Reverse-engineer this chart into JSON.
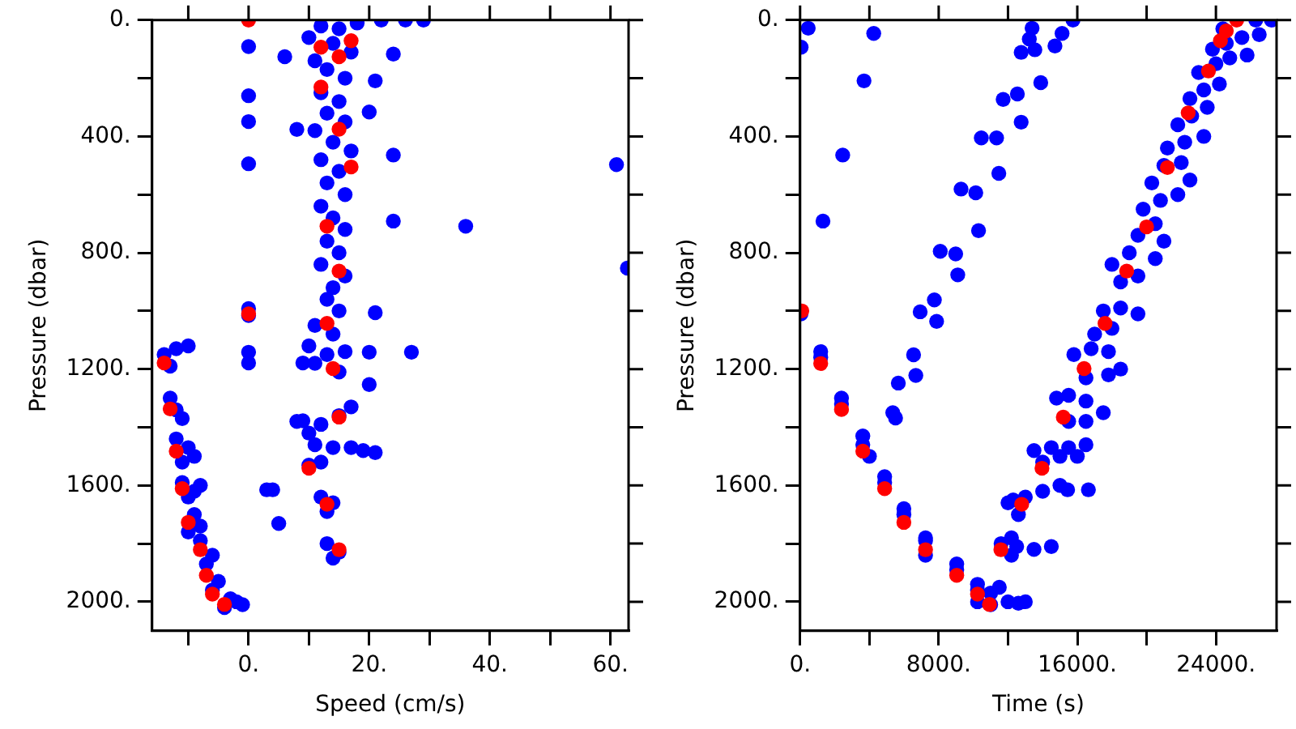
{
  "chart_data": [
    {
      "type": "scatter",
      "xlabel": "Speed (cm/s)",
      "ylabel": "Pressure (dbar)",
      "xlim": [
        -16,
        63
      ],
      "ylim": [
        2100,
        0
      ],
      "grid": false,
      "marker": "circle",
      "xticks": [
        {
          "value": -10,
          "label": null
        },
        {
          "value": 0,
          "label": "0."
        },
        {
          "value": 10,
          "label": null
        },
        {
          "value": 20,
          "label": "20."
        },
        {
          "value": 30,
          "label": null
        },
        {
          "value": 40,
          "label": "40."
        },
        {
          "value": 50,
          "label": null
        },
        {
          "value": 60,
          "label": "60."
        }
      ],
      "yticks": [
        {
          "value": 0,
          "label": "0."
        },
        {
          "value": 200,
          "label": null
        },
        {
          "value": 400,
          "label": "400."
        },
        {
          "value": 600,
          "label": null
        },
        {
          "value": 800,
          "label": "800."
        },
        {
          "value": 1000,
          "label": null
        },
        {
          "value": 1200,
          "label": "1200."
        },
        {
          "value": 1400,
          "label": null
        },
        {
          "value": 1600,
          "label": "1600."
        },
        {
          "value": 1800,
          "label": null
        },
        {
          "value": 2000,
          "label": "2000."
        }
      ],
      "series": [
        {
          "color": "#0000ff",
          "x": [
            0,
            0,
            0,
            0,
            0,
            0,
            0,
            0,
            3,
            4,
            5,
            12,
            15,
            18,
            10,
            14,
            17,
            11,
            13,
            16,
            12,
            15,
            13,
            16,
            11,
            14,
            17,
            12,
            15,
            13,
            16,
            12,
            14,
            16,
            13,
            15,
            12,
            16,
            14,
            13,
            15,
            11,
            14,
            22,
            26,
            29,
            24,
            21,
            20,
            24,
            61,
            36,
            24,
            62.8,
            21,
            8,
            6,
            20,
            27,
            20,
            21,
            9,
            9,
            10,
            13,
            16,
            11,
            15,
            17,
            15,
            12,
            10,
            8,
            11,
            14,
            17,
            19,
            10,
            12,
            12,
            14,
            13,
            13,
            15,
            14,
            -14,
            -12,
            -10,
            -13,
            -13,
            -12,
            -11,
            -12,
            -10,
            -11,
            -9,
            -11,
            -9,
            -10,
            -8,
            -9,
            -10,
            -8,
            -8,
            -6,
            -7,
            -5,
            -6,
            -3,
            -2,
            -4,
            -1
          ],
          "values": [
            91,
            260,
            349,
            494,
            992,
            1016,
            1142,
            1179,
            1615,
            1615,
            1731,
            20,
            30,
            10,
            60,
            80,
            110,
            140,
            170,
            200,
            250,
            280,
            320,
            350,
            380,
            420,
            450,
            480,
            520,
            560,
            600,
            640,
            680,
            720,
            760,
            800,
            840,
            880,
            920,
            960,
            1000,
            1050,
            1080,
            0,
            0,
            0,
            117,
            209,
            316,
            464,
            497,
            709,
            691,
            853,
            1006,
            376,
            126,
            1142,
            1142,
            1253,
            1487,
            1179,
            1378,
            1120,
            1150,
            1140,
            1180,
            1210,
            1330,
            1360,
            1390,
            1420,
            1380,
            1460,
            1470,
            1470,
            1480,
            1530,
            1520,
            1640,
            1660,
            1690,
            1800,
            1830,
            1850,
            1150,
            1130,
            1120,
            1190,
            1300,
            1340,
            1370,
            1440,
            1470,
            1520,
            1500,
            1590,
            1620,
            1640,
            1600,
            1700,
            1760,
            1740,
            1790,
            1840,
            1870,
            1930,
            1960,
            1990,
            2000,
            2020,
            2010
          ]
        },
        {
          "color": "#ff0000",
          "x": [
            0,
            12,
            17,
            15,
            12,
            15,
            17,
            13,
            15,
            0,
            13,
            -14,
            14,
            -13,
            15,
            -12,
            10,
            -11,
            13,
            -10,
            -8,
            15,
            -7,
            -6,
            -4
          ],
          "values": [
            0,
            93,
            71,
            126,
            230,
            375,
            505,
            709,
            863,
            1010,
            1043,
            1179,
            1198,
            1337,
            1365,
            1482,
            1541,
            1611,
            1665,
            1727,
            1821,
            1821,
            1909,
            1974,
            2009
          ]
        }
      ]
    },
    {
      "type": "scatter",
      "xlabel": "Time (s)",
      "ylabel": "Pressure (dbar)",
      "xlim": [
        0,
        27500
      ],
      "ylim": [
        2100,
        0
      ],
      "grid": false,
      "marker": "circle",
      "xticks": [
        {
          "value": 0,
          "label": "0."
        },
        {
          "value": 4000,
          "label": null
        },
        {
          "value": 8000,
          "label": "8000."
        },
        {
          "value": 12000,
          "label": null
        },
        {
          "value": 16000,
          "label": "16000."
        },
        {
          "value": 20000,
          "label": null
        },
        {
          "value": 24000,
          "label": "24000."
        }
      ],
      "yticks": [
        {
          "value": 0,
          "label": "0."
        },
        {
          "value": 200,
          "label": null
        },
        {
          "value": 400,
          "label": "400."
        },
        {
          "value": 600,
          "label": null
        },
        {
          "value": 800,
          "label": "800."
        },
        {
          "value": 1000,
          "label": null
        },
        {
          "value": 1200,
          "label": "1200."
        },
        {
          "value": 1400,
          "label": null
        },
        {
          "value": 1600,
          "label": "1600."
        },
        {
          "value": 1800,
          "label": null
        },
        {
          "value": 2000,
          "label": "2000."
        }
      ],
      "series": [
        {
          "color": "#0000ff",
          "x": [
            470,
            4250,
            3690,
            2460,
            1320,
            60,
            13390,
            13230,
            12760,
            13550,
            14710,
            15750,
            15120,
            13890,
            11720,
            12540,
            12760,
            10460,
            11340,
            11470,
            9290,
            10140,
            10300,
            8090,
            8980,
            9100,
            7750,
            6930,
            7880,
            6550,
            6680,
            5670,
            5350,
            5510,
            1190,
            1190,
            2390,
            2390,
            3620,
            3620,
            4000,
            4880,
            4880,
            5990,
            5990,
            7240,
            7240,
            7240,
            9040,
            9040,
            10240,
            10240,
            10240,
            50,
            11000,
            12000,
            12600,
            13000,
            11500,
            11000,
            11600,
            12500,
            13500,
            14500,
            12200,
            12200,
            12000,
            13000,
            14000,
            15000,
            12600,
            12300,
            15440,
            16640,
            13500,
            14500,
            15500,
            16500,
            14000,
            15000,
            16000,
            14800,
            15500,
            16500,
            17500,
            15500,
            16500,
            15800,
            16800,
            17800,
            18500,
            16500,
            17800,
            17000,
            17500,
            18500,
            19500,
            18000,
            18500,
            19500,
            18000,
            19000,
            20500,
            19500,
            20500,
            21000,
            19800,
            20800,
            21800,
            20300,
            21000,
            22000,
            22500,
            21200,
            22200,
            23300,
            21800,
            22600,
            23500,
            22500,
            23300,
            24200,
            23000,
            24000,
            24800,
            23800,
            24600,
            25500,
            24400,
            26300,
            27200,
            26500,
            25800
          ],
          "values": [
            28,
            46,
            209,
            464,
            691,
            93,
            28,
            65,
            111,
            102,
            89,
            0,
            46,
            215,
            273,
            254,
            351,
            405,
            405,
            527,
            581,
            594,
            724,
            795,
            804,
            876,
            962,
            1003,
            1036,
            1151,
            1222,
            1248,
            1350,
            1368,
            1140,
            1160,
            1300,
            1320,
            1430,
            1460,
            1500,
            1590,
            1570,
            1700,
            1680,
            1790,
            1780,
            1840,
            1870,
            1890,
            1940,
            1960,
            2000,
            1010,
            2010,
            2000,
            2005,
            2000,
            1950,
            1970,
            1800,
            1810,
            1820,
            1810,
            1840,
            1780,
            1660,
            1640,
            1620,
            1600,
            1700,
            1650,
            1615,
            1615,
            1480,
            1470,
            1470,
            1460,
            1520,
            1500,
            1500,
            1300,
            1290,
            1310,
            1350,
            1380,
            1380,
            1150,
            1130,
            1140,
            1200,
            1230,
            1220,
            1080,
            1000,
            990,
            1010,
            1060,
            900,
            880,
            840,
            800,
            820,
            740,
            700,
            760,
            650,
            620,
            600,
            560,
            500,
            490,
            550,
            440,
            420,
            400,
            360,
            330,
            300,
            270,
            240,
            220,
            180,
            150,
            130,
            100,
            80,
            60,
            30,
            0,
            0,
            50,
            120
          ]
        },
        {
          "color": "#ff0000",
          "x": [
            100,
            25200,
            24600,
            24260,
            23570,
            22400,
            21200,
            20000,
            18850,
            17600,
            1190,
            16390,
            2390,
            15190,
            3620,
            13960,
            4880,
            12790,
            5990,
            7240,
            11590,
            9040,
            10240,
            10930
          ],
          "values": [
            1000,
            0,
            37,
            71,
            175,
            319,
            507,
            711,
            863,
            1043,
            1181,
            1198,
            1339,
            1365,
            1482,
            1541,
            1611,
            1665,
            1727,
            1821,
            1821,
            1909,
            1974,
            2009
          ]
        }
      ]
    }
  ]
}
